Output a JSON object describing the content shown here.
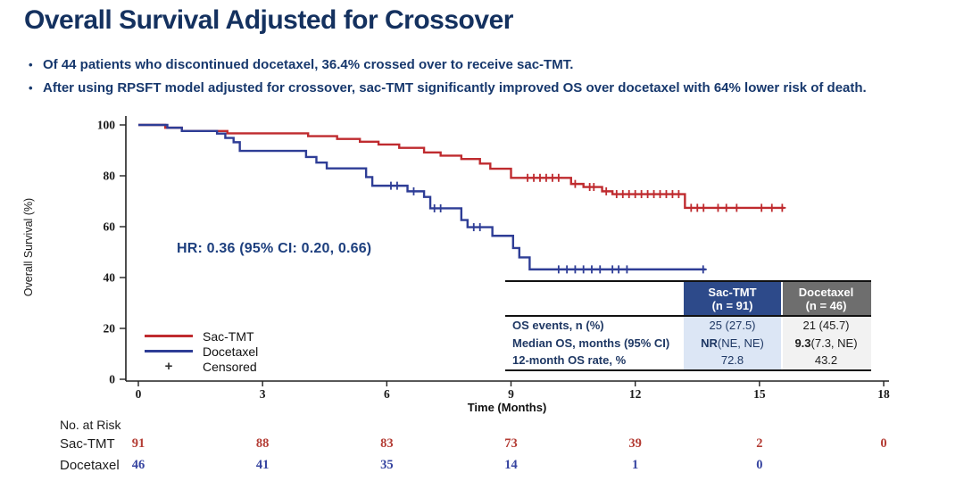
{
  "header": {
    "title": "Overall Survival Adjusted for Crossover",
    "bullets": [
      "Of 44 patients who discontinued docetaxel, 36.4% crossed over to receive sac-TMT.",
      "After using RPSFT model adjusted for crossover, sac-TMT significantly improved OS over docetaxel with 64% lower risk of death."
    ],
    "text_color": "#17386d"
  },
  "chart_data": {
    "type": "line",
    "subtype": "kaplan-meier-step",
    "annotation": "HR: 0.36 (95% CI: 0.20, 0.66)",
    "x_axis": {
      "label": "Time (Months)",
      "ticks": [
        0,
        3,
        6,
        9,
        12,
        15,
        18
      ],
      "range": [
        0,
        18
      ]
    },
    "y_axis": {
      "label": "Overall Survival (%)",
      "ticks": [
        0,
        20,
        40,
        60,
        80,
        100
      ],
      "range": [
        0,
        100
      ]
    },
    "grid": false,
    "legend_position": "bottom-left-inside",
    "series": [
      {
        "name": "Sac-TMT",
        "color": "#bf2b2f",
        "end_month": 15.6,
        "steps": [
          [
            0,
            100
          ],
          [
            0.65,
            98.9
          ],
          [
            1.05,
            97.6
          ],
          [
            2.15,
            96.7
          ],
          [
            4.1,
            95.6
          ],
          [
            4.8,
            94.5
          ],
          [
            5.35,
            93.4
          ],
          [
            5.8,
            92.3
          ],
          [
            6.3,
            91.0
          ],
          [
            6.9,
            89.2
          ],
          [
            7.3,
            87.9
          ],
          [
            7.8,
            86.6
          ],
          [
            8.25,
            84.8
          ],
          [
            8.5,
            82.8
          ],
          [
            9.0,
            79.2
          ],
          [
            10.45,
            76.8
          ],
          [
            10.75,
            75.6
          ],
          [
            11.2,
            73.9
          ],
          [
            11.45,
            72.8
          ],
          [
            13.2,
            67.4
          ]
        ],
        "censors": [
          [
            9.4,
            79.2
          ],
          [
            9.55,
            79.2
          ],
          [
            9.7,
            79.2
          ],
          [
            9.85,
            79.2
          ],
          [
            10.0,
            79.2
          ],
          [
            10.15,
            79.2
          ],
          [
            10.55,
            76.8
          ],
          [
            10.9,
            75.6
          ],
          [
            11.0,
            75.6
          ],
          [
            11.3,
            73.9
          ],
          [
            11.55,
            72.8
          ],
          [
            11.7,
            72.8
          ],
          [
            11.85,
            72.8
          ],
          [
            12.0,
            72.8
          ],
          [
            12.15,
            72.8
          ],
          [
            12.3,
            72.8
          ],
          [
            12.45,
            72.8
          ],
          [
            12.6,
            72.8
          ],
          [
            12.75,
            72.8
          ],
          [
            12.9,
            72.8
          ],
          [
            13.05,
            72.8
          ],
          [
            13.35,
            67.4
          ],
          [
            13.5,
            67.4
          ],
          [
            13.65,
            67.4
          ],
          [
            14.0,
            67.4
          ],
          [
            14.2,
            67.4
          ],
          [
            14.45,
            67.4
          ],
          [
            15.05,
            67.4
          ],
          [
            15.3,
            67.4
          ],
          [
            15.55,
            67.4
          ]
        ]
      },
      {
        "name": "Docetaxel",
        "color": "#2e3d96",
        "end_month": 13.7,
        "steps": [
          [
            0,
            100
          ],
          [
            0.7,
            98.9
          ],
          [
            1.05,
            97.6
          ],
          [
            1.9,
            96.6
          ],
          [
            2.1,
            94.9
          ],
          [
            2.3,
            93.2
          ],
          [
            2.45,
            89.8
          ],
          [
            4.05,
            87.4
          ],
          [
            4.3,
            85.2
          ],
          [
            4.55,
            82.9
          ],
          [
            5.5,
            79.5
          ],
          [
            5.65,
            76.1
          ],
          [
            6.5,
            73.9
          ],
          [
            6.9,
            71.7
          ],
          [
            7.05,
            67.2
          ],
          [
            7.8,
            62.6
          ],
          [
            7.95,
            59.8
          ],
          [
            8.55,
            56.4
          ],
          [
            9.05,
            51.6
          ],
          [
            9.2,
            47.9
          ],
          [
            9.45,
            43.2
          ]
        ],
        "censors": [
          [
            6.1,
            76.1
          ],
          [
            6.25,
            76.1
          ],
          [
            6.65,
            73.9
          ],
          [
            7.15,
            67.2
          ],
          [
            7.3,
            67.2
          ],
          [
            8.1,
            59.8
          ],
          [
            8.25,
            59.8
          ],
          [
            10.15,
            43.2
          ],
          [
            10.35,
            43.2
          ],
          [
            10.55,
            43.2
          ],
          [
            10.75,
            43.2
          ],
          [
            10.95,
            43.2
          ],
          [
            11.15,
            43.2
          ],
          [
            11.45,
            43.2
          ],
          [
            11.6,
            43.2
          ],
          [
            11.8,
            43.2
          ],
          [
            13.64,
            43.2
          ]
        ]
      }
    ],
    "legend": [
      {
        "label": "Sac-TMT",
        "marker": "line",
        "color": "#bf2b2f"
      },
      {
        "label": "Docetaxel",
        "marker": "line",
        "color": "#2e3d96"
      },
      {
        "label": "Censored",
        "marker": "plus",
        "color": "#333333"
      }
    ]
  },
  "summary_table": {
    "label_color": "#1f3864",
    "columns": [
      {
        "title": "Sac-TMT",
        "subtitle": "(n = 91)",
        "header_bg": "#2d4a8a",
        "header_text": "#ffffff",
        "cell_bg": "#dce6f5",
        "cell_text": "#1f3864"
      },
      {
        "title": "Docetaxel",
        "subtitle": "(n = 46)",
        "header_bg": "#6e6e6e",
        "header_text": "#ffffff",
        "cell_bg": "#f2f2f2",
        "cell_text": "#1c1c1c"
      }
    ],
    "rows": [
      {
        "label": "OS events, n (%)",
        "cells": [
          {
            "bold": "",
            "text": "25 (27.5)"
          },
          {
            "bold": "",
            "text": "21 (45.7)"
          }
        ]
      },
      {
        "label": "Median OS, months (95% CI)",
        "cells": [
          {
            "bold": "NR",
            "text": " (NE, NE)"
          },
          {
            "bold": "9.3",
            "text": " (7.3, NE)"
          }
        ]
      },
      {
        "label": "12-month OS rate, %",
        "cells": [
          {
            "bold": "",
            "text": "72.8"
          },
          {
            "bold": "",
            "text": "43.2"
          }
        ]
      }
    ]
  },
  "risk_table": {
    "title": "No. at Risk",
    "months": [
      0,
      3,
      6,
      9,
      12,
      15,
      18
    ],
    "rows": [
      {
        "label": "Sac-TMT",
        "color": "#b43c34",
        "values": [
          "91",
          "88",
          "83",
          "73",
          "39",
          "2",
          "0"
        ]
      },
      {
        "label": "Docetaxel",
        "color": "#3644a0",
        "values": [
          "46",
          "41",
          "35",
          "14",
          "1",
          "0",
          ""
        ]
      }
    ]
  }
}
